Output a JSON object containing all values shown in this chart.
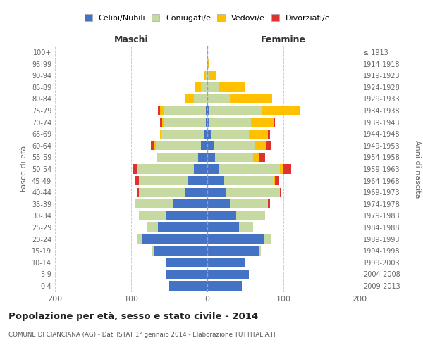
{
  "age_groups": [
    "0-4",
    "5-9",
    "10-14",
    "15-19",
    "20-24",
    "25-29",
    "30-34",
    "35-39",
    "40-44",
    "45-49",
    "50-54",
    "55-59",
    "60-64",
    "65-69",
    "70-74",
    "75-79",
    "80-84",
    "85-89",
    "90-94",
    "95-99",
    "100+"
  ],
  "birth_years": [
    "2009-2013",
    "2004-2008",
    "1999-2003",
    "1994-1998",
    "1989-1993",
    "1984-1988",
    "1979-1983",
    "1974-1978",
    "1969-1973",
    "1964-1968",
    "1959-1963",
    "1954-1958",
    "1949-1953",
    "1944-1948",
    "1939-1943",
    "1934-1938",
    "1929-1933",
    "1924-1928",
    "1919-1923",
    "1914-1918",
    "≤ 1913"
  ],
  "maschi": {
    "celibi": [
      50,
      55,
      55,
      70,
      85,
      65,
      55,
      45,
      30,
      25,
      18,
      12,
      8,
      5,
      2,
      2,
      0,
      0,
      0,
      0,
      0
    ],
    "coniugati": [
      0,
      0,
      0,
      2,
      8,
      15,
      35,
      50,
      60,
      65,
      75,
      55,
      60,
      55,
      55,
      55,
      18,
      8,
      2,
      1,
      1
    ],
    "vedovi": [
      0,
      0,
      0,
      0,
      0,
      0,
      0,
      0,
      0,
      0,
      0,
      0,
      1,
      2,
      2,
      5,
      12,
      8,
      2,
      0,
      0
    ],
    "divorziati": [
      0,
      0,
      0,
      0,
      0,
      0,
      0,
      0,
      2,
      5,
      5,
      0,
      5,
      0,
      3,
      3,
      0,
      0,
      0,
      0,
      0
    ]
  },
  "femmine": {
    "nubili": [
      45,
      55,
      50,
      68,
      75,
      42,
      38,
      30,
      25,
      22,
      15,
      10,
      8,
      5,
      2,
      2,
      0,
      0,
      0,
      0,
      0
    ],
    "coniugate": [
      0,
      0,
      0,
      2,
      8,
      18,
      38,
      50,
      70,
      65,
      80,
      50,
      55,
      50,
      55,
      70,
      30,
      15,
      3,
      1,
      1
    ],
    "vedove": [
      0,
      0,
      0,
      0,
      0,
      0,
      0,
      0,
      0,
      2,
      5,
      8,
      15,
      25,
      30,
      50,
      55,
      35,
      8,
      1,
      0
    ],
    "divorziate": [
      0,
      0,
      0,
      0,
      0,
      0,
      0,
      2,
      2,
      5,
      10,
      8,
      5,
      2,
      2,
      0,
      0,
      0,
      0,
      0,
      0
    ]
  },
  "colors": {
    "celibi": "#4472C4",
    "coniugati": "#c5d9a0",
    "vedovi": "#ffc000",
    "divorziati": "#e03030"
  },
  "title": "Popolazione per età, sesso e stato civile - 2014",
  "subtitle": "COMUNE DI CIANCIANA (AG) - Dati ISTAT 1° gennaio 2014 - Elaborazione TUTTITALIA.IT",
  "xlabel_left": "Maschi",
  "xlabel_right": "Femmine",
  "ylabel_left": "Fasce di età",
  "ylabel_right": "Anni di nascita",
  "xlim": 200,
  "legend_labels": [
    "Celibi/Nubili",
    "Coniugati/e",
    "Vedovi/e",
    "Divorziati/e"
  ],
  "background_color": "#ffffff",
  "grid_color": "#cccccc"
}
